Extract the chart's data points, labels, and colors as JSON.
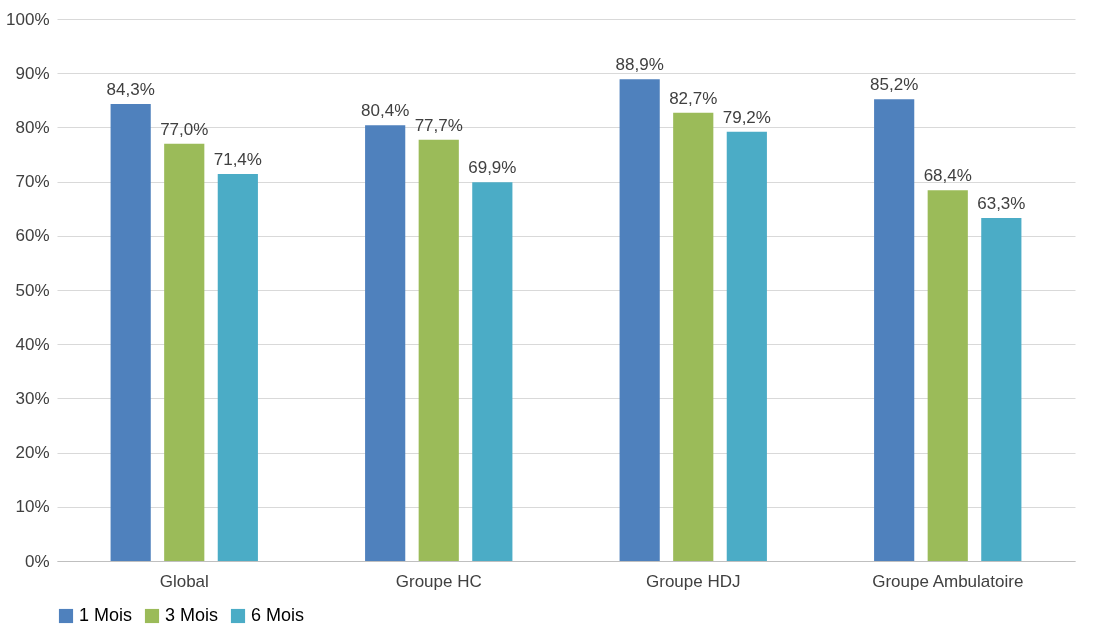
{
  "chart_data": {
    "type": "bar",
    "categories": [
      "Global",
      "Groupe HC",
      "Groupe HDJ",
      "Groupe Ambulatoire"
    ],
    "series": [
      {
        "name": "1 Mois",
        "color": "#4f81bd",
        "values": [
          84.3,
          80.4,
          88.9,
          85.2
        ],
        "value_labels": [
          "84,3%",
          "80,4%",
          "88,9%",
          "85,2%"
        ]
      },
      {
        "name": "3 Mois",
        "color": "#9bbb59",
        "values": [
          77.0,
          77.7,
          82.7,
          68.4
        ],
        "value_labels": [
          "77,0%",
          "77,7%",
          "82,7%",
          "68,4%"
        ]
      },
      {
        "name": "6 Mois",
        "color": "#4bacc6",
        "values": [
          71.4,
          69.9,
          79.2,
          63.3
        ],
        "value_labels": [
          "71,4%",
          "69,9%",
          "79,2%",
          "63,3%"
        ]
      }
    ],
    "ylim": [
      0,
      100
    ],
    "yticks": [
      {
        "value": 0,
        "label": "0%"
      },
      {
        "value": 10,
        "label": "10%"
      },
      {
        "value": 20,
        "label": "20%"
      },
      {
        "value": 30,
        "label": "30%"
      },
      {
        "value": 40,
        "label": "40%"
      },
      {
        "value": 50,
        "label": "50%"
      },
      {
        "value": 60,
        "label": "60%"
      },
      {
        "value": 70,
        "label": "70%"
      },
      {
        "value": 80,
        "label": "80%"
      },
      {
        "value": 90,
        "label": "90%"
      },
      {
        "value": 100,
        "label": "100%"
      }
    ],
    "grid": "y",
    "legend": "bottom"
  }
}
